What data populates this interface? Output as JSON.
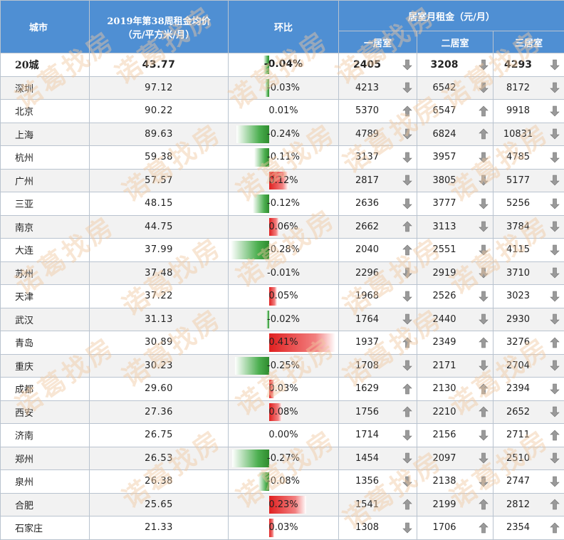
{
  "header": {
    "city": "城市",
    "avg_line1": "2019年第38周租金均价",
    "avg_line2": "（元/平方米/月）",
    "change": "环比",
    "rent_group": "居室月租金（元/月）",
    "room1": "一居室",
    "room2": "二居室",
    "room3": "三居室"
  },
  "watermark": "诺葛找房",
  "colors": {
    "header_bg": "#4f8fd3",
    "neg_bar": "#2e8b2e",
    "pos_bar": "#e02020",
    "arrow": "#9a9a9a"
  },
  "rows": [
    {
      "city": "20城",
      "avg": "43.77",
      "change": "-0.04%",
      "chg": -0.04,
      "r1": "2405",
      "a1": "down",
      "r2": "3208",
      "a2": "down",
      "r3": "4293",
      "a3": "down"
    },
    {
      "city": "深圳",
      "avg": "97.12",
      "change": "-0.03%",
      "chg": -0.03,
      "r1": "4213",
      "a1": "down",
      "r2": "6542",
      "a2": "down",
      "r3": "8172",
      "a3": "down"
    },
    {
      "city": "北京",
      "avg": "90.22",
      "change": "0.01%",
      "chg": 0.0,
      "r1": "5370",
      "a1": "up",
      "r2": "6547",
      "a2": "up",
      "r3": "9918",
      "a3": "down"
    },
    {
      "city": "上海",
      "avg": "89.63",
      "change": "-0.24%",
      "chg": -0.24,
      "r1": "4789",
      "a1": "down",
      "r2": "6824",
      "a2": "up",
      "r3": "10831",
      "a3": "down"
    },
    {
      "city": "杭州",
      "avg": "59.38",
      "change": "-0.11%",
      "chg": -0.11,
      "r1": "3137",
      "a1": "down",
      "r2": "3957",
      "a2": "down",
      "r3": "4785",
      "a3": "down"
    },
    {
      "city": "广州",
      "avg": "57.57",
      "change": "0.12%",
      "chg": 0.12,
      "r1": "2817",
      "a1": "down",
      "r2": "3805",
      "a2": "down",
      "r3": "5177",
      "a3": "down"
    },
    {
      "city": "三亚",
      "avg": "48.15",
      "change": "-0.12%",
      "chg": -0.12,
      "r1": "2636",
      "a1": "down",
      "r2": "3777",
      "a2": "down",
      "r3": "5256",
      "a3": "down"
    },
    {
      "city": "南京",
      "avg": "44.75",
      "change": "0.06%",
      "chg": 0.06,
      "r1": "2662",
      "a1": "up",
      "r2": "3113",
      "a2": "down",
      "r3": "3784",
      "a3": "down"
    },
    {
      "city": "大连",
      "avg": "37.99",
      "change": "-0.28%",
      "chg": -0.28,
      "r1": "2040",
      "a1": "up",
      "r2": "2551",
      "a2": "down",
      "r3": "4115",
      "a3": "down"
    },
    {
      "city": "苏州",
      "avg": "37.48",
      "change": "-0.01%",
      "chg": 0.0,
      "r1": "2296",
      "a1": "down",
      "r2": "2919",
      "a2": "down",
      "r3": "3710",
      "a3": "down"
    },
    {
      "city": "天津",
      "avg": "37.22",
      "change": "0.05%",
      "chg": 0.05,
      "r1": "1968",
      "a1": "down",
      "r2": "2526",
      "a2": "down",
      "r3": "3023",
      "a3": "down"
    },
    {
      "city": "武汉",
      "avg": "31.13",
      "change": "-0.02%",
      "chg": -0.02,
      "r1": "1764",
      "a1": "down",
      "r2": "2440",
      "a2": "down",
      "r3": "2930",
      "a3": "down"
    },
    {
      "city": "青岛",
      "avg": "30.89",
      "change": "0.41%",
      "chg": 0.41,
      "r1": "1937",
      "a1": "up",
      "r2": "2349",
      "a2": "up",
      "r3": "3276",
      "a3": "up"
    },
    {
      "city": "重庆",
      "avg": "30.23",
      "change": "-0.25%",
      "chg": -0.25,
      "r1": "1708",
      "a1": "down",
      "r2": "2171",
      "a2": "down",
      "r3": "2704",
      "a3": "down"
    },
    {
      "city": "成都",
      "avg": "29.60",
      "change": "0.03%",
      "chg": 0.03,
      "r1": "1629",
      "a1": "up",
      "r2": "2130",
      "a2": "up",
      "r3": "2394",
      "a3": "down"
    },
    {
      "city": "西安",
      "avg": "27.36",
      "change": "0.08%",
      "chg": 0.08,
      "r1": "1756",
      "a1": "up",
      "r2": "2210",
      "a2": "up",
      "r3": "2652",
      "a3": "down"
    },
    {
      "city": "济南",
      "avg": "26.75",
      "change": "0.00%",
      "chg": 0.0,
      "r1": "1714",
      "a1": "down",
      "r2": "2156",
      "a2": "down",
      "r3": "2711",
      "a3": "up"
    },
    {
      "city": "郑州",
      "avg": "26.53",
      "change": "-0.27%",
      "chg": -0.27,
      "r1": "1454",
      "a1": "down",
      "r2": "2097",
      "a2": "down",
      "r3": "2510",
      "a3": "down"
    },
    {
      "city": "泉州",
      "avg": "26.38",
      "change": "-0.08%",
      "chg": -0.08,
      "r1": "1356",
      "a1": "down",
      "r2": "2138",
      "a2": "down",
      "r3": "2747",
      "a3": "down"
    },
    {
      "city": "合肥",
      "avg": "25.65",
      "change": "0.23%",
      "chg": 0.23,
      "r1": "1541",
      "a1": "up",
      "r2": "2199",
      "a2": "up",
      "r3": "2812",
      "a3": "up"
    },
    {
      "city": "石家庄",
      "avg": "21.33",
      "change": "0.03%",
      "chg": 0.03,
      "r1": "1308",
      "a1": "down",
      "r2": "1706",
      "a2": "up",
      "r3": "2354",
      "a3": "up"
    }
  ]
}
